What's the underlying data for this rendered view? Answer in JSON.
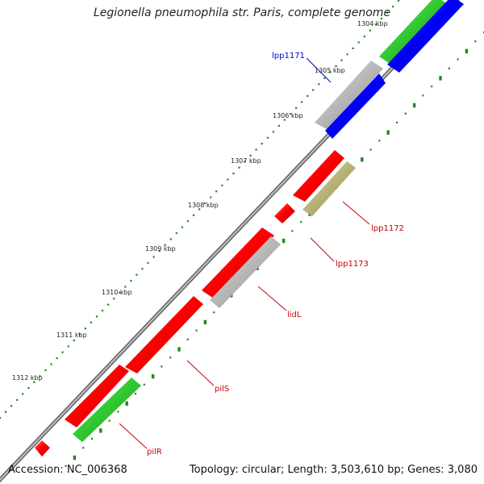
{
  "title": "Legionella pneumophila str. Paris, complete genome",
  "footer": {
    "accession": "Accession: NC_006368",
    "summary": "Topology: circular; Length: 3,503,610 bp; Genes: 3,080"
  },
  "ticks": [
    "1304 kbp",
    "1305 kbp",
    "1306 kbp",
    "1307 kbp",
    "1308 kbp",
    "1309 kbp",
    "1310 kbp",
    "1311 kbp",
    "1312 kbp"
  ],
  "genes": [
    "lpp1171",
    "lpp1172",
    "lpp1173",
    "lidL",
    "pilS",
    "pilR"
  ],
  "colors": {
    "red": "#ff0000",
    "green": "#33cc33",
    "blue": "#0000ff",
    "gray": "#bbbbbb",
    "olive": "#bbb77a",
    "dots": "#228822",
    "backbone": "#888888",
    "label_red": "#cc0000",
    "label_blue": "#0000cc"
  }
}
